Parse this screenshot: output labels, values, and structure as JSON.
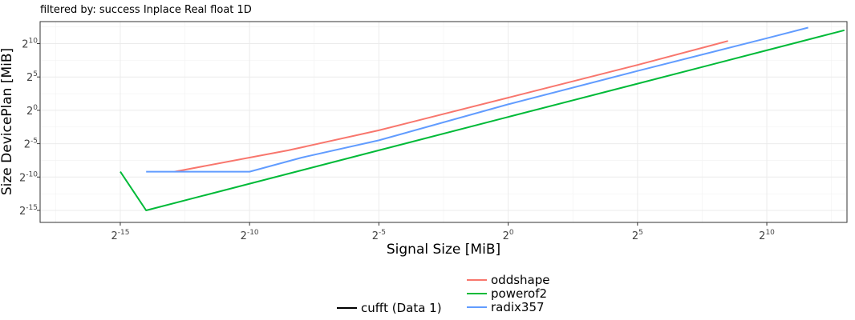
{
  "subtitle": "filtered by: success Inplace Real float 1D",
  "chart_data": {
    "type": "line",
    "title": "",
    "subtitle": "filtered by: success Inplace Real float 1D",
    "xlabel": "Signal Size [MiB]",
    "ylabel": "Size DevicePlan [MiB]",
    "xscale": "log2",
    "yscale": "log2",
    "xlim_log2": [
      -18.1,
      13.1
    ],
    "ylim_log2": [
      -16.8,
      13.3
    ],
    "x_ticks": [
      {
        "base": "2",
        "exp": "-15",
        "log2": -15
      },
      {
        "base": "2",
        "exp": "-10",
        "log2": -10
      },
      {
        "base": "2",
        "exp": "-5",
        "log2": -5
      },
      {
        "base": "2",
        "exp": "0",
        "log2": 0
      },
      {
        "base": "2",
        "exp": "5",
        "log2": 5
      },
      {
        "base": "2",
        "exp": "10",
        "log2": 10
      }
    ],
    "y_ticks": [
      {
        "base": "2",
        "exp": "-15",
        "log2": -15
      },
      {
        "base": "2",
        "exp": "-10",
        "log2": -10
      },
      {
        "base": "2",
        "exp": "-5",
        "log2": -5
      },
      {
        "base": "2",
        "exp": "0",
        "log2": 0
      },
      {
        "base": "2",
        "exp": "5",
        "log2": 5
      },
      {
        "base": "2",
        "exp": "10",
        "log2": 10
      }
    ],
    "grid": true,
    "legend_position": "bottom",
    "series": [
      {
        "name": "oddshape",
        "color": "#F8766D",
        "points_log2": [
          [
            -12.9,
            -9.2
          ],
          [
            -8.5,
            -6.0
          ],
          [
            -5.0,
            -3.0
          ],
          [
            0.0,
            1.9
          ],
          [
            5.0,
            6.8
          ],
          [
            8.5,
            10.4
          ]
        ]
      },
      {
        "name": "powerof2",
        "color": "#00BA38",
        "points_log2": [
          [
            -15.0,
            -9.2
          ],
          [
            -14.0,
            -15.0
          ],
          [
            -10.0,
            -11.0
          ],
          [
            -5.0,
            -6.0
          ],
          [
            0.0,
            -1.0
          ],
          [
            5.0,
            4.0
          ],
          [
            10.0,
            9.0
          ],
          [
            13.0,
            12.0
          ]
        ]
      },
      {
        "name": "radix357",
        "color": "#619CFF",
        "points_log2": [
          [
            -14.0,
            -9.2
          ],
          [
            -10.0,
            -9.2
          ],
          [
            -8.0,
            -7.1
          ],
          [
            -5.0,
            -4.5
          ],
          [
            0.0,
            0.9
          ],
          [
            5.0,
            5.9
          ],
          [
            10.0,
            10.8
          ],
          [
            11.6,
            12.4
          ]
        ]
      }
    ],
    "legend": {
      "series_items": [
        {
          "label": "oddshape",
          "color": "#F8766D"
        },
        {
          "label": "powerof2",
          "color": "#00BA38"
        },
        {
          "label": "radix357",
          "color": "#619CFF"
        }
      ],
      "other_items": [
        {
          "label": "cufft (Data 1)",
          "color": "#000000"
        }
      ]
    }
  }
}
